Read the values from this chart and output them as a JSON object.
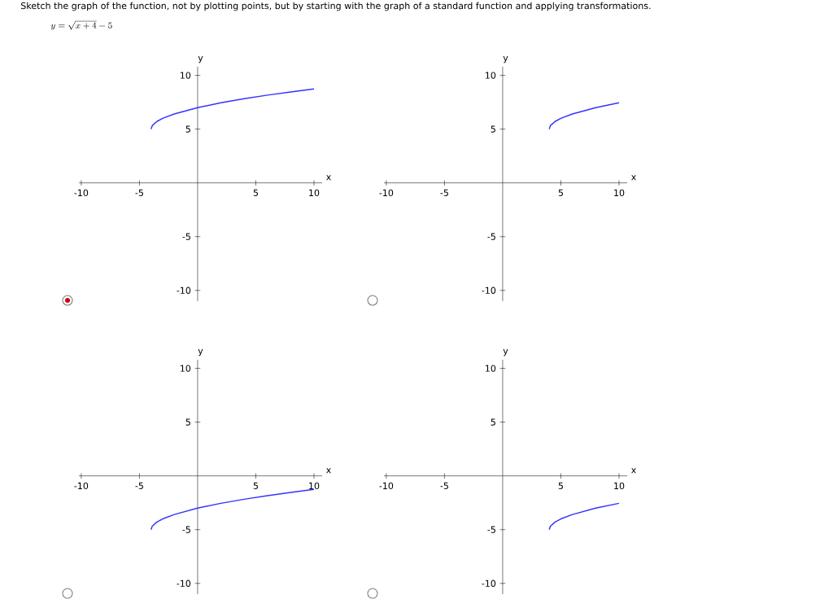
{
  "chart_data": [
    {
      "type": "line",
      "title": "Sketch the graph of the function, not by plotting points, but by starting with the graph of a standard function and applying transformations.",
      "subtitle": "y = \\sqrt{x + 4} - 5",
      "xlabel": "x",
      "ylabel": "y",
      "xlim": [
        -10.2,
        10.7
      ],
      "ylim": [
        -11,
        10.8
      ],
      "xticks": [
        -10,
        -5,
        5,
        10
      ],
      "yticks": [
        -10,
        -5,
        5,
        10
      ],
      "series": [
        {
          "color": "#3333ff",
          "x": [
            -4,
            -3.9,
            -3.5,
            -3,
            -2,
            0,
            2,
            4,
            6,
            8,
            10
          ],
          "values": [
            5,
            5.32,
            5.71,
            6,
            6.41,
            7,
            7.45,
            7.83,
            8.16,
            8.46,
            8.74
          ]
        }
      ]
    },
    {
      "type": "line",
      "xlabel": "x",
      "ylabel": "y",
      "xlim": [
        -10.2,
        10.7
      ],
      "ylim": [
        -11,
        10.8
      ],
      "xticks": [
        -10,
        -5,
        5,
        10
      ],
      "yticks": [
        -10,
        -5,
        5,
        10
      ],
      "series": [
        {
          "color": "#3333ff",
          "x": [
            4,
            4.1,
            4.5,
            5,
            6,
            8,
            10
          ],
          "values": [
            5,
            5.32,
            5.71,
            6,
            6.41,
            7,
            7.45
          ]
        }
      ]
    },
    {
      "type": "line",
      "xlabel": "x",
      "ylabel": "y",
      "xlim": [
        -10.2,
        10.7
      ],
      "ylim": [
        -11,
        10.8
      ],
      "xticks": [
        -10,
        -5,
        5,
        10
      ],
      "yticks": [
        -10,
        -5,
        5,
        10
      ],
      "series": [
        {
          "color": "#3333ff",
          "x": [
            -4,
            -3.9,
            -3.5,
            -3,
            -2,
            0,
            2,
            4,
            6,
            8,
            10
          ],
          "values": [
            -5,
            -4.68,
            -4.29,
            -4,
            -3.59,
            -3,
            -2.55,
            -2.17,
            -1.84,
            -1.54,
            -1.26
          ]
        }
      ]
    },
    {
      "type": "line",
      "xlabel": "x",
      "ylabel": "y",
      "xlim": [
        -10.2,
        10.7
      ],
      "ylim": [
        -11,
        10.8
      ],
      "xticks": [
        -10,
        -5,
        5,
        10
      ],
      "yticks": [
        -10,
        -5,
        5,
        10
      ],
      "series": [
        {
          "color": "#3333ff",
          "x": [
            4,
            4.1,
            4.5,
            5,
            6,
            8,
            10
          ],
          "values": [
            -5,
            -4.68,
            -4.29,
            -4,
            -3.59,
            -3,
            -2.55
          ]
        }
      ]
    }
  ]
}
